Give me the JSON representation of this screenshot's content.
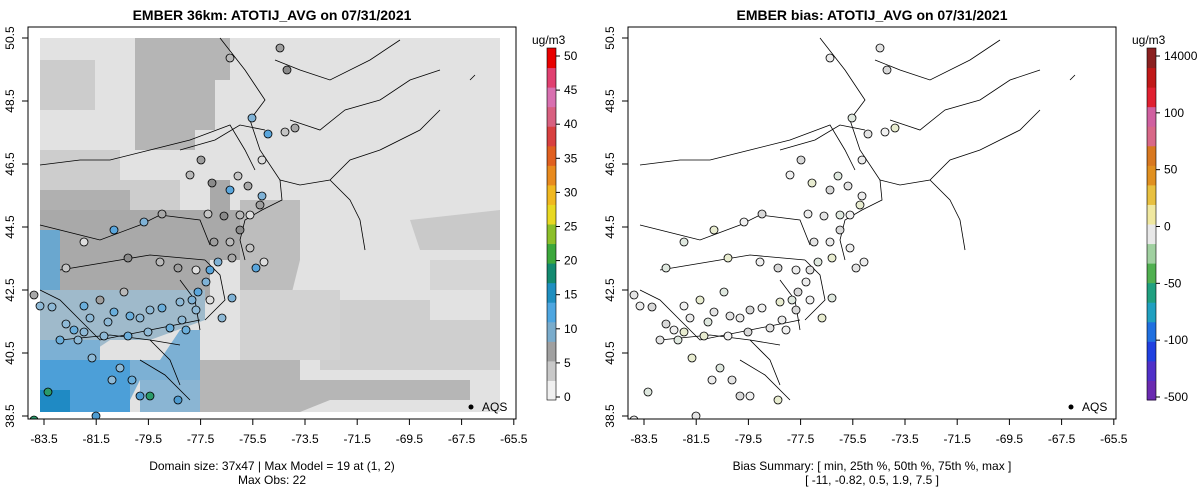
{
  "left_panel": {
    "title": "EMBER 36km: ATOTIJ_AVG on 07/31/2021",
    "caption_line1": "Domain size: 37x47 | Max Model = 19 at (1, 2)",
    "caption_line2": "Max Obs: 22",
    "legend_label": "AQS",
    "colorbar": {
      "unit": "ug/m3",
      "ticks": [
        "0",
        "5",
        "10",
        "15",
        "20",
        "25",
        "30",
        "35",
        "40",
        "45",
        "50"
      ],
      "colors": [
        "#f0f0f0",
        "#c8c8c8",
        "#a0a0a0",
        "#7aaccc",
        "#4ea6e0",
        "#1f8fc0",
        "#138a70",
        "#3ca83c",
        "#8cbf2a",
        "#e8d822",
        "#f0b820",
        "#e88a1e",
        "#e06020",
        "#d84040",
        "#d86080",
        "#d870b0",
        "#e04070",
        "#e80000"
      ]
    }
  },
  "right_panel": {
    "title": "EMBER bias: ATOTIJ_AVG on 07/31/2021",
    "caption_line1": "Bias Summary: [ min, 25th %, 50th %, 75th %, max ]",
    "caption_line2": "[ -11,   -0.82,   0.5,   1.9,   7.5 ]",
    "legend_label": "AQS",
    "colorbar": {
      "unit": "ug/m3",
      "ticks": [
        "-500",
        "-100",
        "-50",
        "0",
        "50",
        "100",
        "14000"
      ],
      "colors": [
        "#6a2ab0",
        "#5030c8",
        "#2040e0",
        "#2070e0",
        "#20a0c0",
        "#20a080",
        "#50b050",
        "#a0d0a0",
        "#e8e8e8",
        "#f0e8a0",
        "#e8c040",
        "#e09020",
        "#d87820",
        "#d86888",
        "#d060a0",
        "#e02030",
        "#c01818",
        "#8a2020"
      ]
    }
  },
  "axes": {
    "x_ticks": [
      "-83.5",
      "-81.5",
      "-79.5",
      "-77.5",
      "-75.5",
      "-73.5",
      "-71.5",
      "-69.5",
      "-67.5",
      "-65.5"
    ],
    "y_ticks": [
      "38.5",
      "40.5",
      "42.5",
      "44.5",
      "46.5",
      "48.5",
      "50.5"
    ]
  },
  "map_data": {
    "lon_range": [
      -84.3,
      -64.8
    ],
    "lat_range": [
      38.4,
      50.5
    ],
    "grid_cols": 37,
    "grid_rows": 47,
    "observation_network": "AQS",
    "max_model_value": 19,
    "max_obs_value": 22
  }
}
